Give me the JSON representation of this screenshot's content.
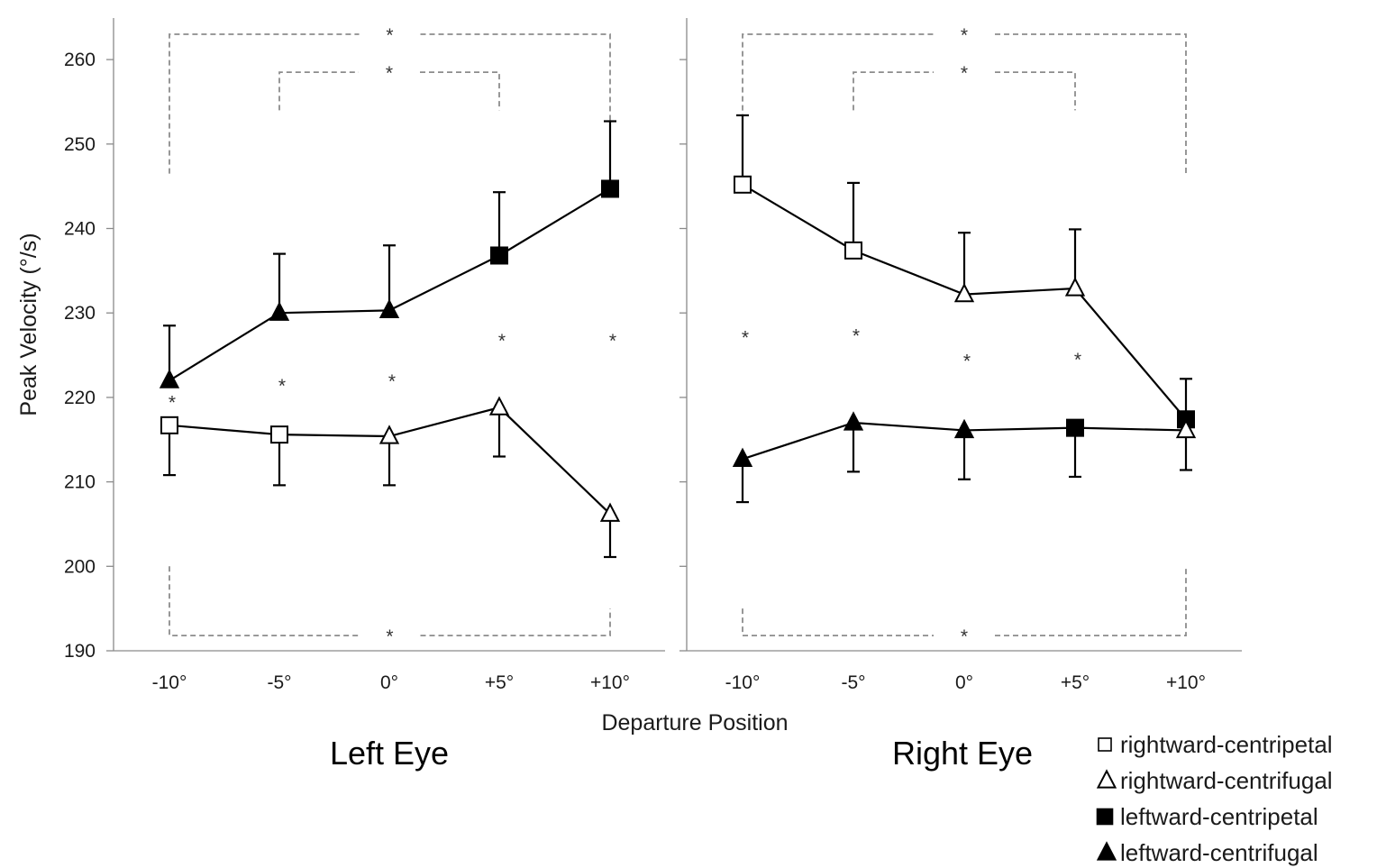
{
  "chart_data": {
    "type": "line",
    "ylabel": "Peak Velocity (°/s)",
    "xlabel": "Departure Position",
    "ylim": [
      190,
      265
    ],
    "yticks": [
      190,
      200,
      210,
      220,
      230,
      240,
      250,
      260
    ],
    "categories": [
      "-10°",
      "-5°",
      "0°",
      "+5°",
      "+10°"
    ],
    "grid": false,
    "legend_position": "bottom-right",
    "significance_marker": "*",
    "legend": [
      {
        "label": "rightward-centripetal",
        "marker": "square",
        "fill": "open"
      },
      {
        "label": "rightward-centrifugal",
        "marker": "triangle",
        "fill": "open"
      },
      {
        "label": "leftward-centripetal",
        "marker": "square",
        "fill": "filled"
      },
      {
        "label": "leftward-centrifugal",
        "marker": "triangle",
        "fill": "filled"
      }
    ],
    "panels": [
      {
        "title": "Left Eye",
        "series": [
          {
            "values": [
              222.0,
              230.0,
              230.3,
              236.8,
              244.7
            ],
            "error_upper": [
              228.5,
              237.0,
              238.0,
              244.3,
              252.7
            ],
            "error_lower": [
              222.0,
              230.0,
              230.3,
              236.8,
              244.7
            ],
            "markers": [
              "filled-triangle",
              "filled-triangle",
              "filled-triangle",
              "filled-square",
              "filled-square"
            ]
          },
          {
            "values": [
              216.7,
              215.6,
              215.4,
              218.8,
              206.2
            ],
            "error_upper": [
              216.7,
              215.6,
              215.4,
              218.8,
              206.2
            ],
            "error_lower": [
              210.8,
              209.6,
              209.6,
              213.0,
              201.1
            ],
            "markers": [
              "open-square",
              "open-square",
              "open-triangle",
              "open-triangle",
              "open-triangle"
            ]
          }
        ],
        "point_significance": [
          {
            "x_index": 0,
            "y": 219.5
          },
          {
            "x_index": 1,
            "y": 221.5
          },
          {
            "x_index": 2,
            "y": 222.0
          },
          {
            "x_index": 3,
            "y": 226.8
          },
          {
            "x_index": 4,
            "y": 226.8
          }
        ],
        "comparison_brackets": [
          {
            "from_index": 0,
            "to_index": 4,
            "side": "top",
            "y": 263.0,
            "legs_to": 246.5
          },
          {
            "from_index": 1,
            "to_index": 3,
            "side": "top",
            "y": 258.5,
            "legs_to": 254.0
          },
          {
            "from_index": 0,
            "to_index": 4,
            "side": "bottom",
            "y": 191.8,
            "legs_to": [
              200.0,
              195.0
            ]
          }
        ]
      },
      {
        "title": "Right Eye",
        "series": [
          {
            "values": [
              245.2,
              237.4,
              232.2,
              232.9,
              217.4
            ],
            "error_upper": [
              253.4,
              245.4,
              239.5,
              239.9,
              222.2
            ],
            "error_lower": [
              245.2,
              237.4,
              232.2,
              232.9,
              217.4
            ],
            "markers": [
              "open-square",
              "open-square",
              "open-triangle",
              "open-triangle",
              "filled-square"
            ]
          },
          {
            "values": [
              212.7,
              217.0,
              216.1,
              216.4,
              216.1
            ],
            "error_upper": [
              212.7,
              217.0,
              216.1,
              216.4,
              216.1
            ],
            "error_lower": [
              207.6,
              211.2,
              210.3,
              210.6,
              211.4
            ],
            "markers": [
              "filled-triangle",
              "filled-triangle",
              "filled-triangle",
              "filled-square",
              "open-triangle"
            ]
          }
        ],
        "point_significance": [
          {
            "x_index": 0,
            "y": 227.2
          },
          {
            "x_index": 1,
            "y": 227.4
          },
          {
            "x_index": 2,
            "y": 224.4
          },
          {
            "x_index": 3,
            "y": 224.6
          }
        ],
        "comparison_brackets": [
          {
            "from_index": 0,
            "to_index": 4,
            "side": "top",
            "y": 263.0,
            "legs_to": 246.5
          },
          {
            "from_index": 1,
            "to_index": 3,
            "side": "top",
            "y": 258.5,
            "legs_to": 254.0
          },
          {
            "from_index": 0,
            "to_index": 4,
            "side": "bottom",
            "y": 191.8,
            "legs_to": [
              195.0,
              200.0
            ]
          }
        ]
      }
    ]
  }
}
